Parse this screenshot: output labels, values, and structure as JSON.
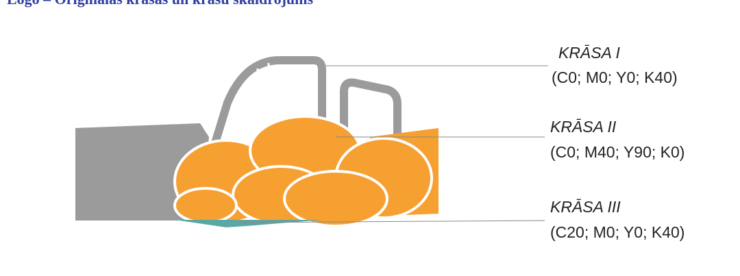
{
  "header": {
    "title": "Logo – Oriģinālās krāsas un krāsu skaidrojums"
  },
  "labels": [
    {
      "name": "KRĀSA I",
      "code": "(C0; M0; Y0; K40)"
    },
    {
      "name": "KRĀSA II",
      "code": "(C0; M40; Y90; K0)"
    },
    {
      "name": "KRĀSA III",
      "code": "(C20; M0; Y0; K40)"
    }
  ]
}
